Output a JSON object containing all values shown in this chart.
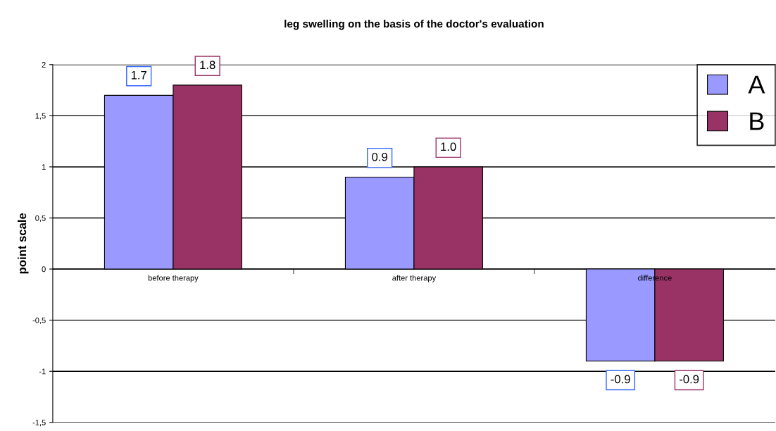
{
  "chart_data": {
    "type": "bar",
    "title": "leg swelling on the basis of the doctor's evaluation",
    "ylabel": "point scale",
    "categories": [
      "before therapy",
      "after therapy",
      "difference"
    ],
    "series": [
      {
        "name": "A",
        "color": "#9999ff",
        "values": [
          1.7,
          0.9,
          -0.9
        ],
        "value_labels": [
          "1.7",
          "0.9",
          "-0.9"
        ]
      },
      {
        "name": "B",
        "color": "#993366",
        "values": [
          1.8,
          1.0,
          -0.9
        ],
        "value_labels": [
          "1.8",
          "1.0",
          "-0.9"
        ]
      }
    ],
    "ylim": [
      -1.5,
      2
    ],
    "yticks": [
      {
        "value": -1.5,
        "label": "-1,5"
      },
      -1,
      {
        "value": -0.5,
        "label": "-0,5"
      },
      0,
      {
        "value": 0.5,
        "label": "0,5"
      },
      1,
      {
        "value": 1.5,
        "label": "1,5"
      },
      2
    ],
    "grid": "y",
    "legend": "top right"
  }
}
